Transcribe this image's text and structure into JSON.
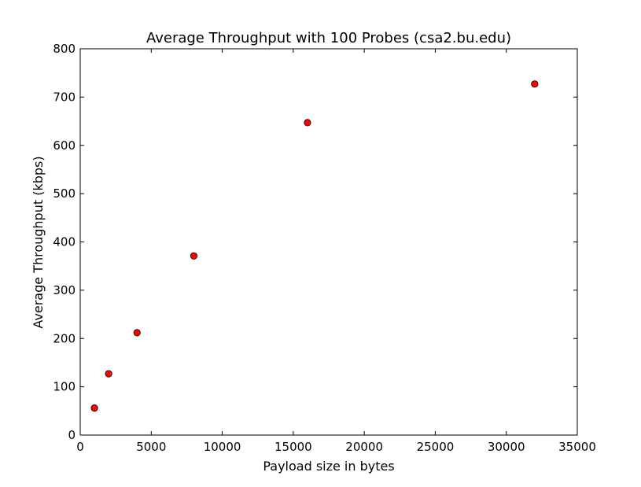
{
  "chart_data": {
    "type": "scatter",
    "title": "Average Throughput with 100 Probes (csa2.bu.edu)",
    "xlabel": "Payload size in bytes",
    "ylabel": "Average Throughput (kbps)",
    "xlim": [
      0,
      35000
    ],
    "ylim": [
      0,
      800
    ],
    "x_ticks": [
      0,
      5000,
      10000,
      15000,
      20000,
      25000,
      30000,
      35000
    ],
    "y_ticks": [
      0,
      100,
      200,
      300,
      400,
      500,
      600,
      700,
      800
    ],
    "grid": false,
    "legend": "none",
    "series": [
      {
        "color": "#ff0000",
        "edge_color": "#000000",
        "marker": "circle",
        "points": [
          {
            "x": 1000,
            "y": 56
          },
          {
            "x": 2000,
            "y": 127
          },
          {
            "x": 4000,
            "y": 212
          },
          {
            "x": 8000,
            "y": 371
          },
          {
            "x": 16000,
            "y": 647
          },
          {
            "x": 32000,
            "y": 727
          }
        ]
      }
    ]
  }
}
